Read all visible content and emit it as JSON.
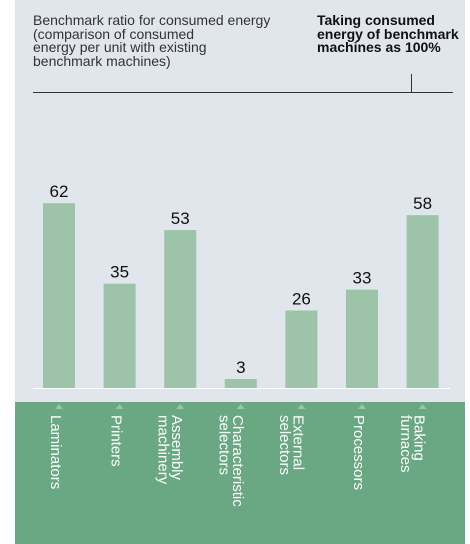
{
  "chart_data": {
    "type": "bar",
    "title": "Benchmark ratio for consumed energy\n(comparison of consumed\nenergy per unit with existing\nbenchmark machines)",
    "note": "Taking consumed\nenergy of benchmark\nmachines as 100%",
    "categories": [
      [
        "Laminators"
      ],
      [
        "Printers"
      ],
      [
        "Assembly",
        "machinery"
      ],
      [
        "Characteristic",
        "selectors"
      ],
      [
        "External",
        "selectors"
      ],
      [
        "Processors"
      ],
      [
        "Baking",
        "furnaces"
      ]
    ],
    "values": [
      62,
      35,
      53,
      3,
      26,
      33,
      58
    ],
    "ylim": [
      0,
      100
    ],
    "colors": {
      "bar": "#9dc3a8",
      "bar_label": "#111111",
      "panel": "#e1e5ec",
      "category_band": "#6aa783",
      "category_text": "#ffffff"
    }
  }
}
